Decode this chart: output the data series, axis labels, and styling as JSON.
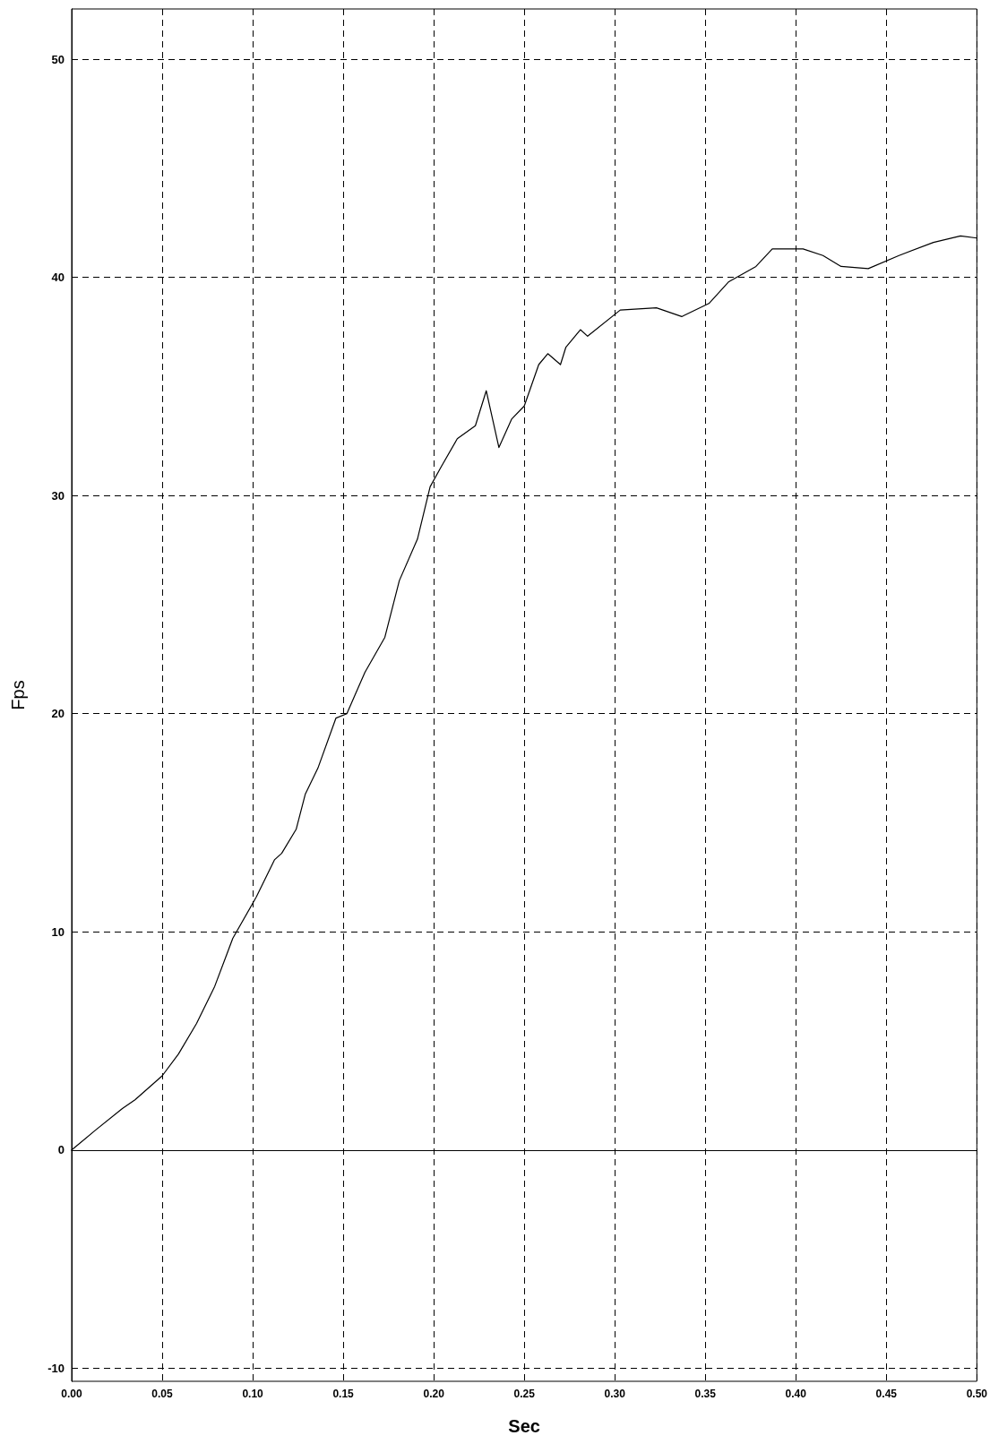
{
  "chart_data": {
    "type": "line",
    "xlabel": "Sec",
    "ylabel": "Fps",
    "xlim": [
      0,
      0.5
    ],
    "ylim": [
      -10.6,
      52.3
    ],
    "xticks": [
      {
        "value": 0,
        "label": "0.00"
      },
      {
        "value": 0.05,
        "label": "0.05"
      },
      {
        "value": 0.1,
        "label": "0.10"
      },
      {
        "value": 0.15,
        "label": "0.15"
      },
      {
        "value": 0.2,
        "label": "0.20"
      },
      {
        "value": 0.25,
        "label": "0.25"
      },
      {
        "value": 0.3,
        "label": "0.30"
      },
      {
        "value": 0.35,
        "label": "0.35"
      },
      {
        "value": 0.4,
        "label": "0.40"
      },
      {
        "value": 0.45,
        "label": "0.45"
      },
      {
        "value": 0.5,
        "label": "0.50"
      }
    ],
    "yticks": [
      -10,
      0,
      10,
      20,
      30,
      40,
      50
    ],
    "grid": true,
    "marker": "none",
    "line_style": "solid",
    "series": [
      {
        "color": "#000000",
        "x": [
          0,
          0.013,
          0.028,
          0.035,
          0.05,
          0.059,
          0.069,
          0.079,
          0.089,
          0.102,
          0.112,
          0.116,
          0.124,
          0.129,
          0.136,
          0.146,
          0.152,
          0.162,
          0.173,
          0.181,
          0.191,
          0.198,
          0.204,
          0.213,
          0.223,
          0.229,
          0.236,
          0.243,
          0.25,
          0.258,
          0.263,
          0.27,
          0.273,
          0.281,
          0.285,
          0.303,
          0.323,
          0.337,
          0.352,
          0.363,
          0.378,
          0.387,
          0.404,
          0.415,
          0.425,
          0.44,
          0.457,
          0.476,
          0.491,
          0.5
        ],
        "values": [
          0,
          0.9,
          1.9,
          2.3,
          3.4,
          4.4,
          5.8,
          7.5,
          9.7,
          11.6,
          13.3,
          13.6,
          14.7,
          16.3,
          17.5,
          19.8,
          20,
          21.9,
          23.5,
          26.1,
          28,
          30.4,
          31.3,
          32.6,
          33.2,
          34.8,
          32.2,
          33.5,
          34.1,
          36,
          36.5,
          36,
          36.8,
          37.6,
          37.3,
          38.5,
          38.6,
          38.2,
          38.8,
          39.8,
          40.5,
          41.3,
          41.3,
          41,
          40.5,
          40.4,
          41,
          41.6,
          41.9,
          41.8
        ]
      }
    ]
  }
}
